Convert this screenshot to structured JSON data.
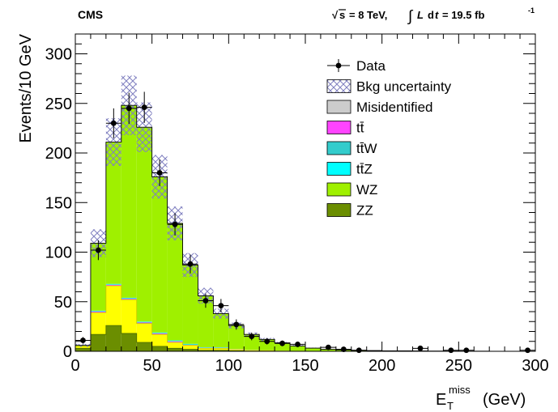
{
  "header": {
    "experiment": "CMS",
    "sqrt_s": "s",
    "energy": "= 8 TeV,",
    "lumi_L": "L",
    "lumi_d": "d",
    "lumi_t": "t",
    "lumi_value": "= 19.5 fb",
    "lumi_exp": "-1"
  },
  "chart_data": {
    "type": "bar",
    "stacked": true,
    "title": "",
    "ylabel": "Events/10 GeV",
    "xlabel_main": "E",
    "xlabel_sub": "T",
    "xlabel_sup": "miss",
    "xlabel_unit": "(GeV)",
    "xlim": [
      0,
      300
    ],
    "ylim": [
      0,
      320
    ],
    "xticks": [
      0,
      50,
      100,
      150,
      200,
      250,
      300
    ],
    "yticks": [
      0,
      50,
      100,
      150,
      200,
      250,
      300
    ],
    "bin_width": 10,
    "bin_edges": [
      0,
      10,
      20,
      30,
      40,
      50,
      60,
      70,
      80,
      90,
      100,
      110,
      120,
      130,
      140,
      150,
      160,
      170,
      180,
      190,
      200,
      210,
      220,
      230,
      240,
      250,
      260,
      270,
      280,
      290,
      300
    ],
    "legend_position": "top-right",
    "colors": {
      "ZZ": "#6b8e00",
      "WZ": "#9ff000",
      "ttZ": "#00ffff",
      "ttW": "#33cccc",
      "tt": "#ff44ff",
      "Misidentified": "#ffff00",
      "uncertainty": "#8080c0"
    },
    "series": [
      {
        "key": "ZZ",
        "name": "ZZ",
        "values": [
          3,
          17,
          26,
          18,
          9,
          5,
          3,
          2,
          1,
          1,
          0.5,
          0.3,
          0.2,
          0.1,
          0.1,
          0,
          0,
          0,
          0,
          0,
          0,
          0,
          0,
          0,
          0,
          0,
          0,
          0,
          0,
          0
        ]
      },
      {
        "key": "Mis",
        "name": "Misidentified",
        "values": [
          2,
          22,
          40,
          34,
          19,
          12,
          6,
          4,
          2,
          2,
          1,
          0.5,
          0.5,
          0.2,
          0.1,
          0.1,
          0,
          0,
          0,
          0,
          0,
          0,
          0,
          0,
          0,
          0,
          0,
          0,
          0,
          0
        ]
      },
      {
        "key": "tt",
        "name": "tt̄",
        "values": [
          0,
          1,
          1,
          1,
          1,
          1,
          1,
          0.5,
          0.5,
          0.5,
          0.3,
          0.2,
          0.1,
          0.1,
          0,
          0,
          0,
          0,
          0,
          0,
          0,
          0,
          0,
          0,
          0,
          0,
          0,
          0,
          0,
          0
        ]
      },
      {
        "key": "ttW",
        "name": "tt̄W",
        "values": [
          0,
          0.5,
          0.5,
          0.5,
          0.5,
          0.5,
          0.5,
          0.5,
          0.3,
          0.3,
          0.2,
          0.2,
          0.1,
          0.1,
          0.1,
          0,
          0,
          0,
          0,
          0,
          0,
          0,
          0,
          0,
          0,
          0,
          0,
          0,
          0,
          0
        ]
      },
      {
        "key": "ttZ",
        "name": "tt̄Z",
        "values": [
          0,
          0.5,
          0.5,
          0.5,
          0.5,
          0.5,
          0.5,
          0.5,
          0.3,
          0.3,
          0.2,
          0.2,
          0.1,
          0.1,
          0.1,
          0,
          0,
          0,
          0,
          0,
          0,
          0,
          0,
          0,
          0,
          0,
          0,
          0,
          0,
          0
        ]
      },
      {
        "key": "WZ",
        "name": "WZ",
        "values": [
          1,
          68,
          143,
          194,
          196,
          157,
          118,
          79,
          52,
          34,
          24,
          16,
          11,
          8,
          5,
          3,
          2,
          1.5,
          1,
          0.8,
          0.5,
          0.4,
          0.3,
          0.2,
          0.2,
          0.1,
          0.1,
          0,
          0,
          0
        ]
      }
    ],
    "totals": [
      6,
      109,
      211,
      248,
      226,
      176,
      129,
      87,
      56,
      38,
      26,
      17,
      12,
      8.5,
      5.5,
      3.2,
      2,
      1.5,
      1,
      0.8,
      0.5,
      0.4,
      0.3,
      0.2,
      0.2,
      0.1,
      0.1,
      0,
      0,
      0
    ],
    "uncertainty": [
      1.5,
      14,
      24,
      30,
      25,
      22,
      17,
      12,
      8,
      5,
      3,
      2,
      1.5,
      1,
      0.8,
      0.5,
      0.4,
      0.3,
      0.2,
      0.2,
      0.1,
      0.1,
      0.1,
      0.1,
      0.1,
      0,
      0,
      0,
      0,
      0
    ],
    "data": {
      "name": "Data",
      "points": [
        {
          "x": 5,
          "y": 11,
          "err": 3.3
        },
        {
          "x": 15,
          "y": 102,
          "err": 10
        },
        {
          "x": 25,
          "y": 230,
          "err": 15
        },
        {
          "x": 35,
          "y": 245,
          "err": 15.7
        },
        {
          "x": 45,
          "y": 246,
          "err": 15.7
        },
        {
          "x": 55,
          "y": 180,
          "err": 13.4
        },
        {
          "x": 65,
          "y": 128,
          "err": 11.3
        },
        {
          "x": 75,
          "y": 88,
          "err": 9.4
        },
        {
          "x": 85,
          "y": 51,
          "err": 7.1
        },
        {
          "x": 95,
          "y": 46,
          "err": 6.8
        },
        {
          "x": 105,
          "y": 27,
          "err": 5.2
        },
        {
          "x": 115,
          "y": 15,
          "err": 3.9
        },
        {
          "x": 125,
          "y": 10,
          "err": 3.2
        },
        {
          "x": 135,
          "y": 8,
          "err": 2.8
        },
        {
          "x": 145,
          "y": 7,
          "err": 2.6
        },
        {
          "x": 165,
          "y": 4,
          "err": 2
        },
        {
          "x": 175,
          "y": 2,
          "err": 1.4
        },
        {
          "x": 185,
          "y": 1,
          "err": 1
        },
        {
          "x": 225,
          "y": 3,
          "err": 1.7
        },
        {
          "x": 245,
          "y": 1,
          "err": 1
        },
        {
          "x": 255,
          "y": 1,
          "err": 1
        },
        {
          "x": 295,
          "y": 1,
          "err": 1
        }
      ]
    },
    "legend": [
      {
        "key": "data",
        "label": "Data"
      },
      {
        "key": "unc",
        "label": "Bkg uncertainty"
      },
      {
        "key": "Mis",
        "label": "Misidentified"
      },
      {
        "key": "tt",
        "label": "tt̄"
      },
      {
        "key": "ttW",
        "label": "tt̄W"
      },
      {
        "key": "ttZ",
        "label": "tt̄Z"
      },
      {
        "key": "WZ",
        "label": "WZ"
      },
      {
        "key": "ZZ",
        "label": "ZZ"
      }
    ]
  }
}
